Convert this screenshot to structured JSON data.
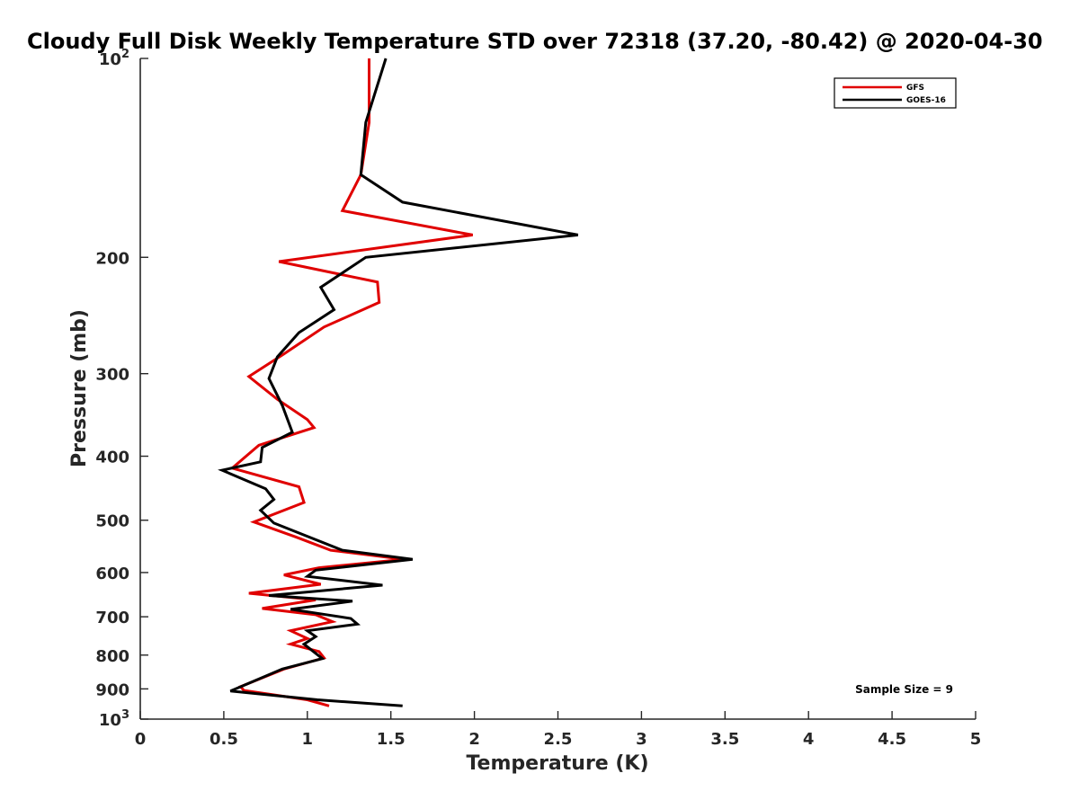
{
  "chart_data": {
    "type": "line",
    "title": "Cloudy Full Disk Weekly Temperature STD over 72318 (37.20, -80.42) @ 2020-04-30",
    "xlabel": "Temperature (K)",
    "ylabel": "Pressure (mb)",
    "xlim": [
      0,
      5
    ],
    "ylim": [
      100,
      1000
    ],
    "yscale": "log",
    "yaxis_reversed": true,
    "grid": false,
    "legend_position": "top-right",
    "x_ticks": [
      {
        "value": 0,
        "label": "0"
      },
      {
        "value": 0.5,
        "label": "0.5"
      },
      {
        "value": 1,
        "label": "1"
      },
      {
        "value": 1.5,
        "label": "1.5"
      },
      {
        "value": 2,
        "label": "2"
      },
      {
        "value": 2.5,
        "label": "2.5"
      },
      {
        "value": 3,
        "label": "3"
      },
      {
        "value": 3.5,
        "label": "3.5"
      },
      {
        "value": 4,
        "label": "4"
      },
      {
        "value": 4.5,
        "label": "4.5"
      },
      {
        "value": 5,
        "label": "5"
      }
    ],
    "y_ticks": [
      {
        "value": 100,
        "base": "10",
        "exp": "2"
      },
      {
        "value": 200,
        "label": "200"
      },
      {
        "value": 300,
        "label": "300"
      },
      {
        "value": 400,
        "label": "400"
      },
      {
        "value": 500,
        "label": "500"
      },
      {
        "value": 600,
        "label": "600"
      },
      {
        "value": 700,
        "label": "700"
      },
      {
        "value": 800,
        "label": "800"
      },
      {
        "value": 900,
        "label": "900"
      },
      {
        "value": 1000,
        "base": "10",
        "exp": "3"
      }
    ],
    "series": [
      {
        "name": "GFS",
        "color": "#e00000",
        "points": [
          [
            1.37,
            100
          ],
          [
            1.37,
            125
          ],
          [
            1.32,
            150
          ],
          [
            1.21,
            170
          ],
          [
            1.99,
            185
          ],
          [
            0.83,
            203
          ],
          [
            1.42,
            218
          ],
          [
            1.43,
            234
          ],
          [
            1.1,
            255
          ],
          [
            0.86,
            280
          ],
          [
            0.65,
            303
          ],
          [
            0.82,
            328
          ],
          [
            1.0,
            352
          ],
          [
            1.04,
            362
          ],
          [
            0.71,
            385
          ],
          [
            0.55,
            417
          ],
          [
            0.95,
            445
          ],
          [
            0.98,
            470
          ],
          [
            0.68,
            503
          ],
          [
            0.93,
            530
          ],
          [
            1.14,
            555
          ],
          [
            1.58,
            573
          ],
          [
            1.07,
            590
          ],
          [
            0.86,
            605
          ],
          [
            1.08,
            625
          ],
          [
            0.65,
            645
          ],
          [
            1.05,
            660
          ],
          [
            0.73,
            680
          ],
          [
            1.05,
            695
          ],
          [
            1.15,
            712
          ],
          [
            0.9,
            735
          ],
          [
            1.0,
            755
          ],
          [
            0.9,
            770
          ],
          [
            1.07,
            790
          ],
          [
            1.1,
            808
          ],
          [
            0.86,
            840
          ],
          [
            0.6,
            893
          ],
          [
            0.62,
            905
          ],
          [
            1.0,
            935
          ],
          [
            1.13,
            955
          ]
        ]
      },
      {
        "name": "GOES-16",
        "color": "#000000",
        "points": [
          [
            1.47,
            100
          ],
          [
            1.35,
            125
          ],
          [
            1.32,
            150
          ],
          [
            1.57,
            165
          ],
          [
            2.62,
            185
          ],
          [
            1.35,
            200
          ],
          [
            1.08,
            222
          ],
          [
            1.16,
            240
          ],
          [
            0.95,
            260
          ],
          [
            0.82,
            283
          ],
          [
            0.77,
            305
          ],
          [
            0.85,
            335
          ],
          [
            0.91,
            368
          ],
          [
            0.73,
            388
          ],
          [
            0.72,
            408
          ],
          [
            0.49,
            420
          ],
          [
            0.75,
            448
          ],
          [
            0.8,
            465
          ],
          [
            0.72,
            483
          ],
          [
            0.8,
            505
          ],
          [
            1.21,
            555
          ],
          [
            1.63,
            573
          ],
          [
            1.05,
            595
          ],
          [
            1.0,
            608
          ],
          [
            1.45,
            627
          ],
          [
            0.77,
            650
          ],
          [
            1.27,
            663
          ],
          [
            0.9,
            682
          ],
          [
            1.26,
            704
          ],
          [
            1.3,
            718
          ],
          [
            1.0,
            735
          ],
          [
            1.05,
            750
          ],
          [
            0.98,
            770
          ],
          [
            1.09,
            810
          ],
          [
            0.85,
            840
          ],
          [
            0.54,
            907
          ],
          [
            1.06,
            935
          ],
          [
            1.57,
            955
          ]
        ]
      }
    ],
    "annotations": [
      {
        "text": "Sample Size = 9"
      }
    ]
  }
}
